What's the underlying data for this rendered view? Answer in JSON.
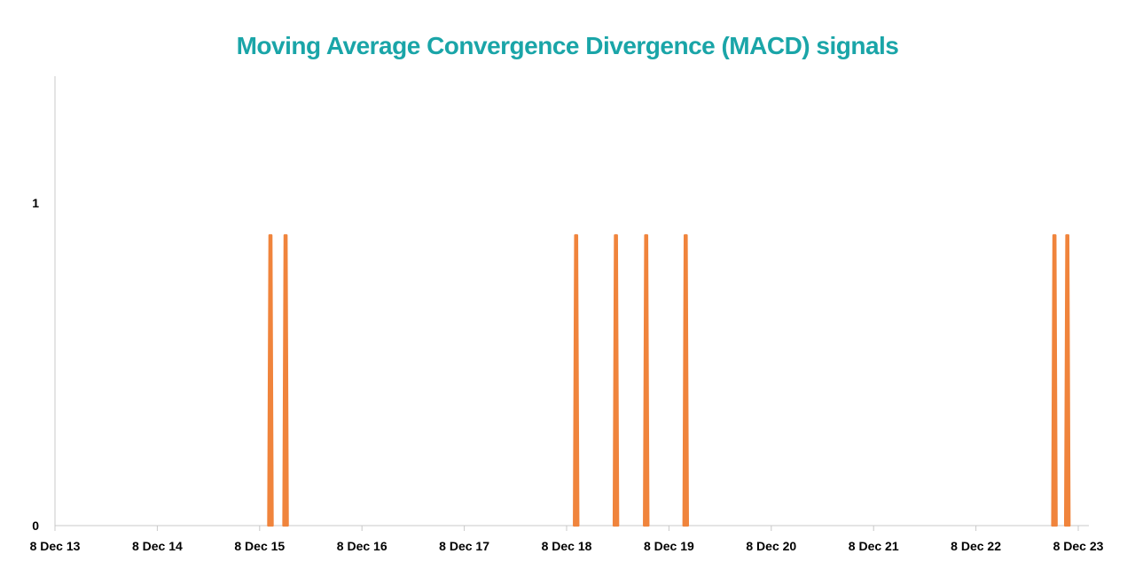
{
  "chart_data": {
    "type": "line",
    "title": "Moving Average Convergence Divergence (MACD) signals",
    "xlabel": "",
    "ylabel": "",
    "x_ticks": [
      "8 Dec 13",
      "8 Dec 14",
      "8 Dec 15",
      "8 Dec 16",
      "8 Dec 17",
      "8 Dec 18",
      "8 Dec 19",
      "8 Dec 20",
      "8 Dec 21",
      "8 Dec 22",
      "8 Dec 23"
    ],
    "y_ticks": [
      "0",
      "1"
    ],
    "ylim": [
      0,
      1.4
    ],
    "xlim": [
      "2013-12-08",
      "2024-01-15"
    ],
    "grid": false,
    "legend": "none",
    "series": [
      {
        "color": "#f0843c",
        "signal_value": 0.9,
        "signal_dates": [
          "2016-01-16",
          "2016-03-10",
          "2019-01-11",
          "2019-06-02",
          "2019-09-18",
          "2020-02-06",
          "2023-09-14",
          "2023-10-30"
        ]
      }
    ],
    "axis_color": "#c8c8c8"
  }
}
